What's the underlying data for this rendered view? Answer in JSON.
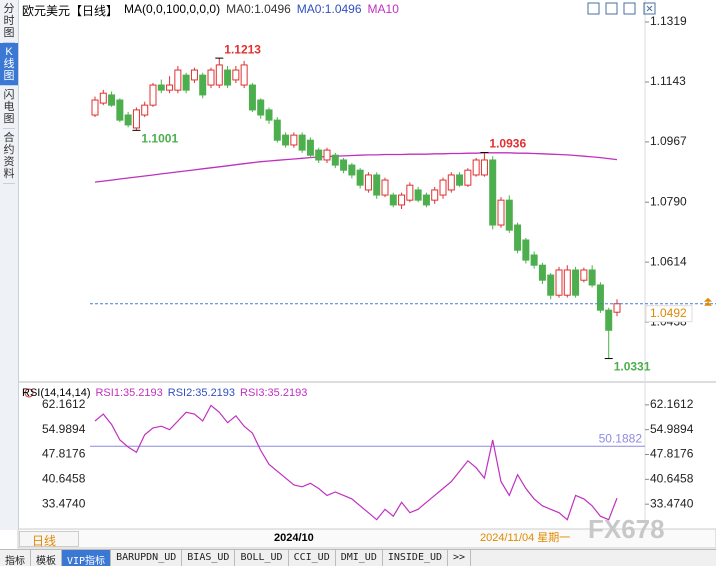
{
  "header": {
    "title": "欧元美元【日线】",
    "indicator": "MA(0,0,100,0,0,0)",
    "ma_values": [
      "MA0:1.0496",
      "MA0:1.0496",
      "MA10"
    ]
  },
  "sidebar": [
    "分时图",
    "K线图",
    "闪电图",
    "合约资料"
  ],
  "chart_data": [
    {
      "type": "candlestick",
      "ylim": [
        1.0268,
        1.1369
      ],
      "yticks": [
        1.1319,
        1.1143,
        1.0967,
        {
          "value": 1.079,
          "label": "1.0790"
        },
        1.0614,
        1.0438
      ],
      "up_color": "#e03030",
      "down_color": "#4cae4c",
      "ma_color": "#c030c0",
      "last_price": 1.0492,
      "last_color": "#4a7fd0",
      "high_marks": [
        1.1213,
        1.0936
      ],
      "low_marks": [
        1.1001,
        1.0331
      ],
      "categories": [
        null,
        null,
        null,
        null,
        null,
        null,
        null,
        null,
        null,
        null,
        null,
        null,
        null,
        null,
        null,
        null,
        null,
        null,
        null,
        null,
        null,
        null,
        null,
        null,
        "2024/10",
        null,
        null,
        null,
        null,
        null,
        null,
        null,
        null,
        null,
        null,
        null,
        null,
        null,
        null,
        null,
        null,
        null,
        null,
        null,
        null,
        null,
        null,
        null,
        null,
        null,
        null,
        null,
        null,
        null,
        null,
        null,
        null,
        null,
        null,
        null,
        null,
        null,
        null,
        null
      ],
      "ohlc": [
        [
          1.1046,
          1.11,
          1.104,
          1.109
        ],
        [
          1.1081,
          1.112,
          1.1075,
          1.111
        ],
        [
          1.1105,
          1.1115,
          1.107,
          1.1075
        ],
        [
          1.109,
          1.1095,
          1.1025,
          1.1031
        ],
        [
          1.1046,
          1.1055,
          1.101,
          1.1017
        ],
        [
          1.1008,
          1.1068,
          1.1001,
          1.1061
        ],
        [
          1.1046,
          1.1085,
          1.104,
          1.1075
        ],
        [
          1.1075,
          1.114,
          1.107,
          1.1134
        ],
        [
          1.1134,
          1.115,
          1.111,
          1.1119
        ],
        [
          1.1119,
          1.116,
          1.111,
          1.1134
        ],
        [
          1.1119,
          1.119,
          1.111,
          1.1178
        ],
        [
          1.1163,
          1.117,
          1.111,
          1.1119
        ],
        [
          1.1149,
          1.1185,
          1.114,
          1.1178
        ],
        [
          1.1163,
          1.117,
          1.1095,
          1.1105
        ],
        [
          1.1134,
          1.1185,
          1.1125,
          1.1178
        ],
        [
          1.1134,
          1.1213,
          1.1125,
          1.1193
        ],
        [
          1.1178,
          1.119,
          1.1125,
          1.1134
        ],
        [
          1.1149,
          1.119,
          1.114,
          1.1178
        ],
        [
          1.1134,
          1.1205,
          1.1125,
          1.1193
        ],
        [
          1.1134,
          1.114,
          1.1055,
          1.1061
        ],
        [
          1.109,
          1.1095,
          1.1035,
          1.1046
        ],
        [
          1.1061,
          1.1068,
          1.102,
          1.1031
        ],
        [
          1.1031,
          1.104,
          1.0965,
          1.0972
        ],
        [
          1.0987,
          1.0995,
          1.095,
          1.0958
        ],
        [
          1.0958,
          1.0995,
          1.095,
          1.0987
        ],
        [
          1.0987,
          1.0995,
          1.0935,
          1.0943
        ],
        [
          1.0972,
          1.098,
          1.092,
          1.0928
        ],
        [
          1.0943,
          1.095,
          1.0905,
          1.0914
        ],
        [
          1.0914,
          1.095,
          1.0905,
          1.0943
        ],
        [
          1.0928,
          1.0935,
          1.089,
          1.0899
        ],
        [
          1.0914,
          1.092,
          1.0875,
          1.0884
        ],
        [
          1.0899,
          1.0905,
          1.086,
          1.087
        ],
        [
          1.0884,
          1.089,
          1.083,
          1.084
        ],
        [
          1.0826,
          1.0878,
          1.0818,
          1.087
        ],
        [
          1.087,
          1.0878,
          1.08,
          1.0811
        ],
        [
          1.0811,
          1.0862,
          1.0805,
          1.0855
        ],
        [
          1.0811,
          1.0818,
          1.0775,
          1.0782
        ],
        [
          1.0782,
          1.0818,
          1.077,
          1.0811
        ],
        [
          1.0796,
          1.0848,
          1.079,
          1.084
        ],
        [
          1.0826,
          1.0835,
          1.079,
          1.0796
        ],
        [
          1.0811,
          1.0818,
          1.0775,
          1.0782
        ],
        [
          1.0796,
          1.0835,
          1.0785,
          1.0826
        ],
        [
          1.0811,
          1.0862,
          1.08,
          1.0855
        ],
        [
          1.0826,
          1.0878,
          1.0818,
          1.087
        ],
        [
          1.087,
          1.0878,
          1.0835,
          1.084
        ],
        [
          1.084,
          1.089,
          1.0835,
          1.0884
        ],
        [
          1.087,
          1.092,
          1.0865,
          1.0914
        ],
        [
          1.087,
          1.0936,
          1.0865,
          1.0914
        ],
        [
          1.0914,
          1.0925,
          1.071,
          1.0723
        ],
        [
          1.0723,
          1.0805,
          1.0715,
          1.0796
        ],
        [
          1.0796,
          1.081,
          1.07,
          1.0708
        ],
        [
          1.0723,
          1.073,
          1.064,
          1.0649
        ],
        [
          1.0679,
          1.0685,
          1.061,
          1.062
        ],
        [
          1.0635,
          1.0645,
          1.0595,
          1.0605
        ],
        [
          1.0605,
          1.0612,
          1.055,
          1.0561
        ],
        [
          1.0576,
          1.0582,
          1.0505,
          1.0517
        ],
        [
          1.0517,
          1.06,
          1.051,
          1.0591
        ],
        [
          1.0517,
          1.0605,
          1.051,
          1.0591
        ],
        [
          1.0591,
          1.06,
          1.051,
          1.0517
        ],
        [
          1.0561,
          1.0598,
          1.0555,
          1.0591
        ],
        [
          1.0591,
          1.0605,
          1.054,
          1.0547
        ],
        [
          1.0547,
          1.0555,
          1.0465,
          1.0473
        ],
        [
          1.0473,
          1.048,
          1.0331,
          1.0414
        ],
        [
          1.0467,
          1.0505,
          1.0455,
          1.0492
        ]
      ],
      "ma": [
        1.0849,
        1.0852,
        1.0855,
        1.0858,
        1.0861,
        1.0864,
        1.0867,
        1.087,
        1.0873,
        1.0876,
        1.0879,
        1.0882,
        1.0885,
        1.0888,
        1.0891,
        1.0894,
        1.0897,
        1.09,
        1.0903,
        1.0906,
        1.0909,
        1.0911,
        1.0913,
        1.0915,
        1.0917,
        1.0919,
        1.0921,
        1.0923,
        1.0924,
        1.0925,
        1.0926,
        1.0927,
        1.0928,
        1.0929,
        1.0929,
        1.093,
        1.093,
        1.093,
        1.0931,
        1.0931,
        1.0931,
        1.0932,
        1.0932,
        1.0933,
        1.0933,
        1.0934,
        1.0934,
        1.0935,
        1.0935,
        1.0935,
        1.0935,
        1.0934,
        1.0934,
        1.0933,
        1.0932,
        1.0931,
        1.093,
        1.0929,
        1.0927,
        1.0925,
        1.0923,
        1.0921,
        1.0918,
        1.0915
      ]
    },
    {
      "type": "line",
      "title": "RSI(14,14,14)",
      "legend": [
        "RSI1:35.2193",
        "RSI2:35.2193",
        "RSI3:35.2193"
      ],
      "legend_colors": [
        "#c030c0",
        "#3050c0",
        "#c030c0"
      ],
      "ylim": [
        26.59,
        67.9
      ],
      "yticks": [
        62.1612,
        54.9894,
        47.8176,
        40.6458,
        {
          "value": 33.474,
          "label": "33.4740"
        }
      ],
      "ref_line": 50.1882,
      "ref_color": "#8c8ce0",
      "series": [
        {
          "color": "#c030c0",
          "values": [
            57.5,
            59.5,
            56.5,
            52,
            50,
            48.5,
            53.5,
            55.5,
            56,
            55,
            57.5,
            60,
            59.5,
            57.5,
            62,
            60,
            57,
            59,
            56,
            54,
            49,
            45,
            43,
            41,
            39,
            38.5,
            39.5,
            38,
            36,
            37,
            36,
            35,
            33,
            31,
            29,
            32,
            30,
            34,
            31,
            32,
            34,
            36,
            38,
            40,
            43,
            46,
            44,
            41,
            52,
            40,
            36,
            42,
            38,
            35,
            33,
            32,
            31,
            29,
            36,
            35,
            33,
            30,
            29,
            35.2193
          ]
        }
      ]
    }
  ],
  "cursor_label": "2024/11/04 星期一",
  "period": "日线",
  "watermark": "FX678",
  "tabs": [
    "指标",
    "模板",
    "VIP指标",
    "BARUPDN_UD",
    "BIAS_UD",
    "BOLL_UD",
    "CCI_UD",
    "DMI_UD",
    "INSIDE_UD",
    ">>"
  ]
}
